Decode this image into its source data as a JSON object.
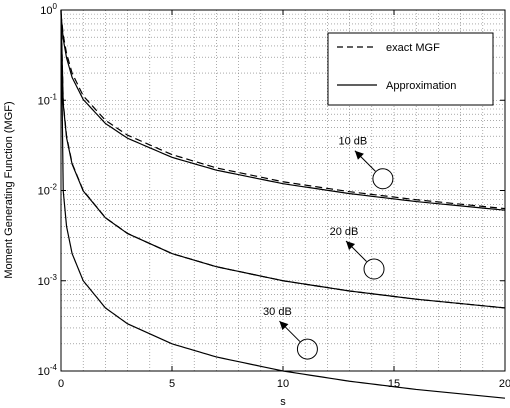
{
  "chart_data": {
    "type": "line",
    "title": "",
    "xlabel": "s",
    "ylabel": "Moment Generating Function (MGF)",
    "xlim": [
      0,
      20
    ],
    "ylim_log10": [
      -4,
      0
    ],
    "yscale": "log",
    "grid": "dotted, major and minor",
    "x_ticks": [
      "0",
      "5",
      "10",
      "15",
      "20"
    ],
    "y_ticks": [
      {
        "base": "10",
        "exp": "0"
      },
      {
        "base": "10",
        "exp": "-1"
      },
      {
        "base": "10",
        "exp": "-2"
      },
      {
        "base": "10",
        "exp": "-3"
      },
      {
        "base": "10",
        "exp": "-4"
      }
    ],
    "legend": {
      "placement": "top-right",
      "entries": [
        {
          "label": "exact MGF",
          "style": "dashed"
        },
        {
          "label": "Approximation",
          "style": "solid"
        }
      ]
    },
    "x": [
      0,
      0.1,
      0.25,
      0.5,
      1,
      2,
      3,
      5,
      7,
      10,
      13,
      16,
      20
    ],
    "series": [
      {
        "group": "10 dB",
        "style": "solid",
        "values": [
          0.909,
          0.478,
          0.295,
          0.179,
          0.102,
          0.0553,
          0.0379,
          0.0233,
          0.0168,
          0.0119,
          0.00924,
          0.00754,
          0.00605
        ]
      },
      {
        "group": "10 dB",
        "style": "dashed",
        "values": [
          0.909,
          0.53,
          0.33,
          0.2,
          0.112,
          0.06,
          0.041,
          0.025,
          0.0178,
          0.0125,
          0.0097,
          0.0079,
          0.0063
        ]
      },
      {
        "group": "20 dB",
        "style": "solid",
        "values": [
          0.99,
          0.0909,
          0.0385,
          0.0196,
          0.0099,
          0.00498,
          0.00333,
          0.002,
          0.00143,
          0.001,
          0.00077,
          0.000625,
          0.0005
        ]
      },
      {
        "group": "20 dB",
        "style": "dashed",
        "values": [
          0.99,
          0.095,
          0.04,
          0.02,
          0.01,
          0.005,
          0.00334,
          0.002,
          0.00143,
          0.001,
          0.00077,
          0.000625,
          0.0005
        ]
      },
      {
        "group": "30 dB",
        "style": "solid",
        "values": [
          0.999,
          0.0099,
          0.004,
          0.002,
          0.001,
          0.0005,
          0.000333,
          0.0002,
          0.000143,
          0.0001,
          7.7e-05,
          6.25e-05,
          5e-05
        ]
      }
    ],
    "annotations": [
      {
        "text": "10 dB",
        "circle_at": [
          14.5,
          0.0135
        ]
      },
      {
        "text": "20 dB",
        "circle_at": [
          14.1,
          0.00135
        ]
      },
      {
        "text": "30 dB",
        "circle_at": [
          11.1,
          0.000175
        ]
      }
    ]
  }
}
